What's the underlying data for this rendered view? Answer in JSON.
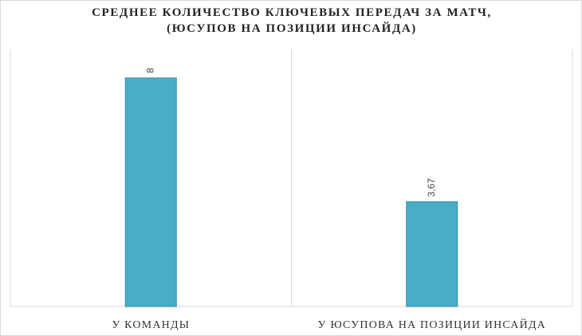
{
  "chart_data": {
    "type": "bar",
    "title": [
      "СРЕДНЕЕ КОЛИЧЕСТВО КЛЮЧЕВЫХ ПЕРЕДАЧ ЗА МАТЧ,",
      "(ЮСУПОВ  НА ПОЗИЦИИ ИНСАЙДА)"
    ],
    "categories": [
      "У КОМАНДЫ",
      "У ЮСУПОВА НА ПОЗИЦИИ ИНСАЙДА"
    ],
    "values": [
      8,
      3.67
    ],
    "value_labels": [
      "8",
      "3,67"
    ],
    "color": "#4bacc6",
    "ylim": [
      0,
      9
    ]
  }
}
